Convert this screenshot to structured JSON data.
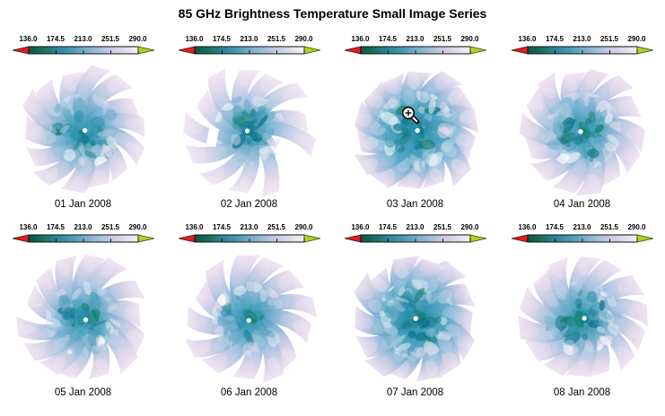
{
  "title": "85 GHz Brightness Temperature Small Image Series",
  "colorbar": {
    "tick_labels": [
      "136.0",
      "174.5",
      "213.0",
      "251.5",
      "290.0"
    ],
    "gradient": [
      "#0e5347",
      "#1a6f5e",
      "#2a8695",
      "#4497af",
      "#74abc8",
      "#9fbdd8",
      "#c6cbe2",
      "#e0dcea",
      "#f4eff4"
    ],
    "left_arrow_color": "#e61c1c",
    "right_arrow_color": "#a9d226",
    "outline_color": "#111111"
  },
  "palette": {
    "center": "#3b9ab3",
    "arm_inner": "#3f9cb6",
    "arm_mid": "#a9c2e0",
    "arm_tip": "#ece2f1",
    "pole_hole": "#ffffff",
    "dark_spots": [
      "#0c7186",
      "#14806e",
      "#288ea6",
      "#4ba2bb"
    ]
  },
  "cursor": {
    "type": "zoom-in",
    "over_panel": "03 Jan 2008"
  },
  "panels": [
    {
      "date": "01 Jan 2008",
      "seed": 101,
      "arms": 14,
      "rotation": 10,
      "density": 1.0
    },
    {
      "date": "02 Jan 2008",
      "seed": 202,
      "arms": 13,
      "rotation": 24,
      "density": 0.85,
      "sparse": true
    },
    {
      "date": "03 Jan 2008",
      "seed": 303,
      "arms": 14,
      "rotation": 2,
      "density": 1.25,
      "cursor": true
    },
    {
      "date": "04 Jan 2008",
      "seed": 404,
      "arms": 14,
      "rotation": 15,
      "density": 1.1
    },
    {
      "date": "05 Jan 2008",
      "seed": 505,
      "arms": 14,
      "rotation": 7,
      "density": 1.0
    },
    {
      "date": "06 Jan 2008",
      "seed": 606,
      "arms": 13,
      "rotation": 20,
      "density": 1.0
    },
    {
      "date": "07 Jan 2008",
      "seed": 707,
      "arms": 14,
      "rotation": 12,
      "density": 1.2
    },
    {
      "date": "08 Jan 2008",
      "seed": 808,
      "arms": 14,
      "rotation": 29,
      "density": 1.05
    }
  ],
  "chart_data": {
    "type": "heatmap",
    "title": "85 GHz Brightness Temperature Small Image Series",
    "layout": {
      "rows": 2,
      "cols": 4
    },
    "colorbar_ticks": [
      136.0,
      174.5,
      213.0,
      251.5,
      290.0
    ],
    "colorbar_range": [
      136.0,
      290.0
    ],
    "colorbar_position": "above each panel",
    "panels": [
      "01 Jan 2008",
      "02 Jan 2008",
      "03 Jan 2008",
      "04 Jan 2008",
      "05 Jan 2008",
      "06 Jan 2008",
      "07 Jan 2008",
      "08 Jan 2008"
    ],
    "description": "Daily polar-orbit satellite swath composites (pinwheel pattern) of 85 GHz brightness temperature; teal = low Tb near pole center, pale lavender = high Tb at swath edges"
  }
}
